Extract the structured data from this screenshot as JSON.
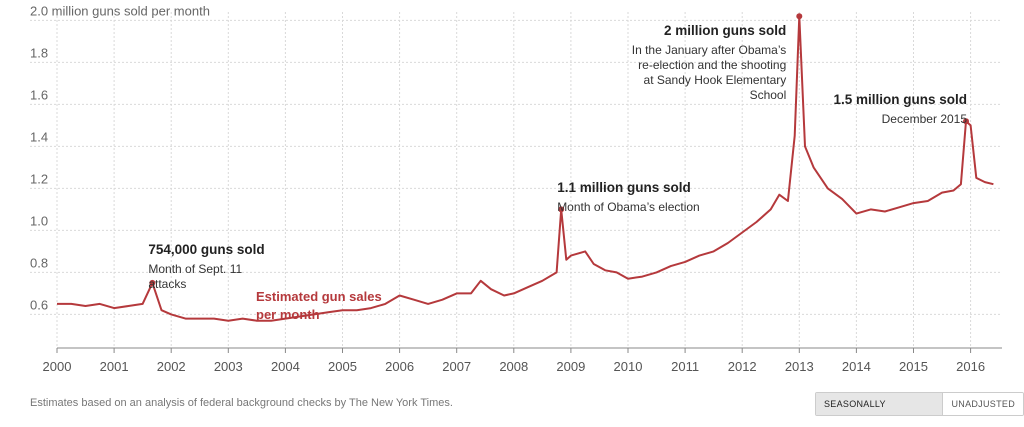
{
  "colors": {
    "series": "#b5393c",
    "grid": "#d9d9d9",
    "axis": "#888888"
  },
  "chart_data": {
    "type": "line",
    "ylabel_top": "2.0 million guns sold per month",
    "ylim": [
      0.44,
      2.04
    ],
    "xlim": [
      2000,
      2016.55
    ],
    "yticks": [
      {
        "value": 2.0,
        "label": ""
      },
      {
        "value": 1.8,
        "label": "1.8"
      },
      {
        "value": 1.6,
        "label": "1.6"
      },
      {
        "value": 1.4,
        "label": "1.4"
      },
      {
        "value": 1.2,
        "label": "1.2"
      },
      {
        "value": 1.0,
        "label": "1.0"
      },
      {
        "value": 0.8,
        "label": "0.8"
      },
      {
        "value": 0.6,
        "label": "0.6"
      }
    ],
    "xticks": [
      "2000",
      "2001",
      "2002",
      "2003",
      "2004",
      "2005",
      "2006",
      "2007",
      "2008",
      "2009",
      "2010",
      "2011",
      "2012",
      "2013",
      "2014",
      "2015",
      "2016"
    ],
    "grid": "vertical and horizontal",
    "series": [
      {
        "name": "Estimated gun sales per month",
        "points": [
          [
            2000.0,
            0.65
          ],
          [
            2000.25,
            0.65
          ],
          [
            2000.5,
            0.64
          ],
          [
            2000.75,
            0.65
          ],
          [
            2001.0,
            0.63
          ],
          [
            2001.25,
            0.64
          ],
          [
            2001.5,
            0.65
          ],
          [
            2001.67,
            0.75
          ],
          [
            2001.83,
            0.62
          ],
          [
            2002.0,
            0.6
          ],
          [
            2002.25,
            0.58
          ],
          [
            2002.5,
            0.58
          ],
          [
            2002.75,
            0.58
          ],
          [
            2003.0,
            0.57
          ],
          [
            2003.25,
            0.58
          ],
          [
            2003.5,
            0.57
          ],
          [
            2003.75,
            0.57
          ],
          [
            2004.0,
            0.58
          ],
          [
            2004.25,
            0.59
          ],
          [
            2004.5,
            0.6
          ],
          [
            2004.75,
            0.61
          ],
          [
            2005.0,
            0.62
          ],
          [
            2005.25,
            0.62
          ],
          [
            2005.5,
            0.63
          ],
          [
            2005.75,
            0.65
          ],
          [
            2006.0,
            0.69
          ],
          [
            2006.25,
            0.67
          ],
          [
            2006.5,
            0.65
          ],
          [
            2006.75,
            0.67
          ],
          [
            2007.0,
            0.7
          ],
          [
            2007.25,
            0.7
          ],
          [
            2007.42,
            0.76
          ],
          [
            2007.6,
            0.72
          ],
          [
            2007.83,
            0.69
          ],
          [
            2008.0,
            0.7
          ],
          [
            2008.25,
            0.73
          ],
          [
            2008.5,
            0.76
          ],
          [
            2008.75,
            0.8
          ],
          [
            2008.83,
            1.1
          ],
          [
            2008.92,
            0.86
          ],
          [
            2009.0,
            0.88
          ],
          [
            2009.25,
            0.9
          ],
          [
            2009.4,
            0.84
          ],
          [
            2009.6,
            0.81
          ],
          [
            2009.8,
            0.8
          ],
          [
            2010.0,
            0.77
          ],
          [
            2010.25,
            0.78
          ],
          [
            2010.5,
            0.8
          ],
          [
            2010.75,
            0.83
          ],
          [
            2011.0,
            0.85
          ],
          [
            2011.25,
            0.88
          ],
          [
            2011.5,
            0.9
          ],
          [
            2011.75,
            0.94
          ],
          [
            2012.0,
            0.99
          ],
          [
            2012.25,
            1.04
          ],
          [
            2012.5,
            1.1
          ],
          [
            2012.65,
            1.17
          ],
          [
            2012.8,
            1.14
          ],
          [
            2012.92,
            1.45
          ],
          [
            2013.0,
            2.02
          ],
          [
            2013.1,
            1.4
          ],
          [
            2013.25,
            1.3
          ],
          [
            2013.5,
            1.2
          ],
          [
            2013.75,
            1.15
          ],
          [
            2014.0,
            1.08
          ],
          [
            2014.25,
            1.1
          ],
          [
            2014.5,
            1.09
          ],
          [
            2014.75,
            1.11
          ],
          [
            2015.0,
            1.13
          ],
          [
            2015.25,
            1.14
          ],
          [
            2015.5,
            1.18
          ],
          [
            2015.7,
            1.19
          ],
          [
            2015.83,
            1.22
          ],
          [
            2015.92,
            1.52
          ],
          [
            2016.0,
            1.5
          ],
          [
            2016.1,
            1.25
          ],
          [
            2016.25,
            1.23
          ],
          [
            2016.4,
            1.22
          ]
        ]
      }
    ],
    "markers": [
      {
        "x": 2001.67,
        "y": 0.75
      },
      {
        "x": 2008.83,
        "y": 1.1
      },
      {
        "x": 2013.0,
        "y": 2.02
      },
      {
        "x": 2015.92,
        "y": 1.52
      }
    ],
    "annotations": [
      {
        "title": "754,000 guns sold",
        "lines": [
          "Month of Sept. 11",
          "attacks"
        ],
        "x": 2001.67,
        "anchor": "start"
      },
      {
        "title": "1.1 million guns sold",
        "lines": [
          "Month of Obama’s election"
        ],
        "x": 2008.83,
        "anchor": "start"
      },
      {
        "title": "2 million guns sold",
        "lines": [
          "In the January after Obama’s",
          "re-election and the shooting",
          "at Sandy Hook Elementary",
          "School"
        ],
        "x": 2013.0,
        "anchor": "end"
      },
      {
        "title": "1.5 million guns sold",
        "lines": [
          "December 2015"
        ],
        "x": 2015.92,
        "anchor": "end"
      }
    ],
    "series_label": {
      "lines": [
        "Estimated gun sales",
        "per month"
      ]
    }
  },
  "footnote": "Estimates based on an analysis of federal background checks by The New York Times.",
  "toggle": {
    "options": [
      "SEASONALLY ADJUSTED",
      "UNADJUSTED"
    ],
    "selected": "SEASONALLY ADJUSTED"
  }
}
